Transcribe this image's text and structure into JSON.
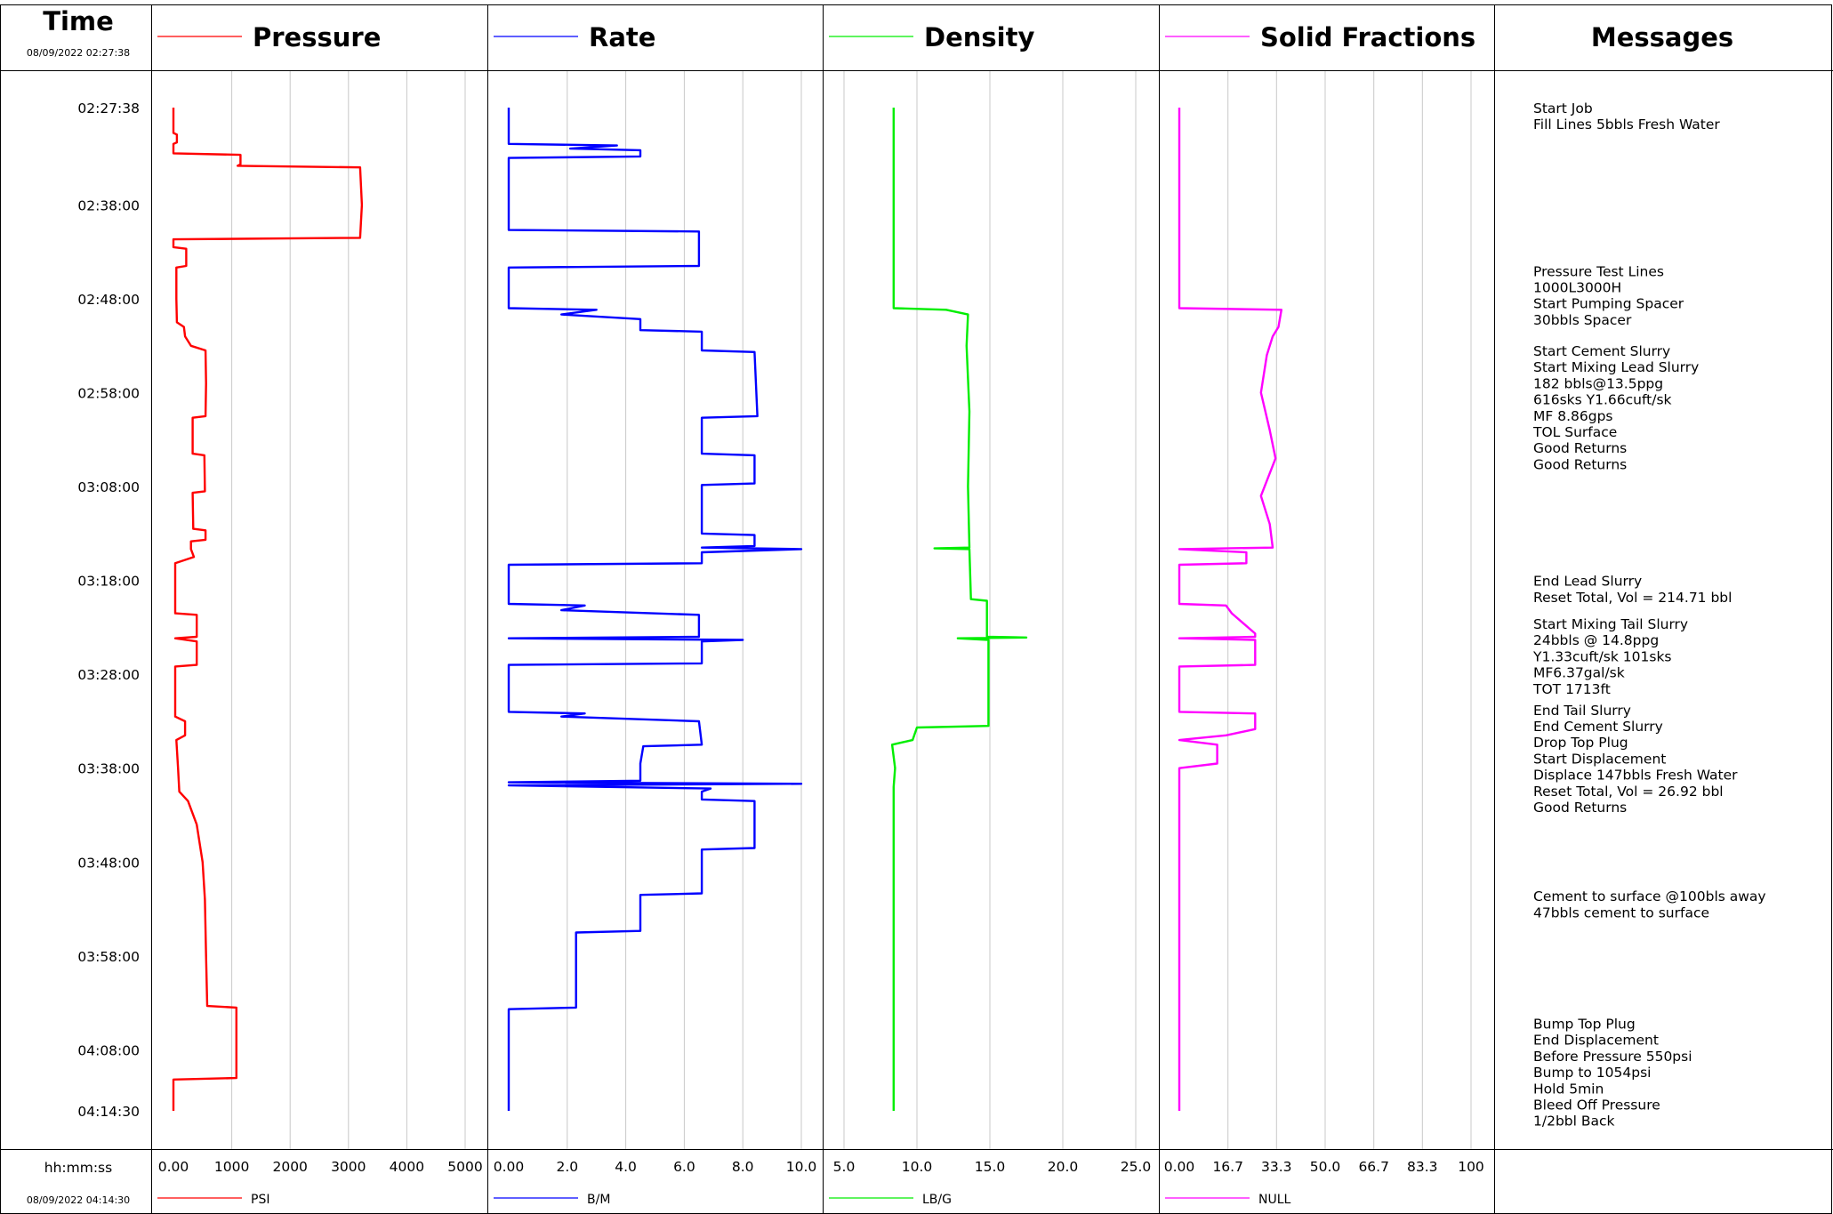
{
  "time_header": {
    "title": "Time",
    "start_stamp": "08/09/2022 02:27:38",
    "unit_label": "hh:mm:ss",
    "end_stamp": "08/09/2022 04:14:30"
  },
  "messages_header": {
    "title": "Messages"
  },
  "time_axis": {
    "start": "02:27:38",
    "end": "04:14:30",
    "ticks": [
      "02:27:38",
      "02:38:00",
      "02:48:00",
      "02:58:00",
      "03:08:00",
      "03:18:00",
      "03:28:00",
      "03:38:00",
      "03:48:00",
      "03:58:00",
      "04:08:00",
      "04:14:30"
    ]
  },
  "chart_data": [
    {
      "type": "line",
      "title": "Pressure",
      "unit": "PSI",
      "color": "#ff0000",
      "xlim": [
        0,
        5000
      ],
      "x_ticks": [
        "0.00",
        "1000",
        "2000",
        "3000",
        "4000",
        "5000"
      ],
      "points": [
        [
          "02:27:38",
          0
        ],
        [
          "02:30:20",
          0
        ],
        [
          "02:30:30",
          60
        ],
        [
          "02:31:20",
          60
        ],
        [
          "02:31:30",
          0
        ],
        [
          "02:32:30",
          0
        ],
        [
          "02:32:40",
          1150
        ],
        [
          "02:33:40",
          1150
        ],
        [
          "02:33:50",
          1100
        ],
        [
          "02:34:00",
          3200
        ],
        [
          "02:38:00",
          3230
        ],
        [
          "02:41:30",
          3200
        ],
        [
          "02:41:40",
          0
        ],
        [
          "02:42:30",
          0
        ],
        [
          "02:42:40",
          220
        ],
        [
          "02:44:30",
          220
        ],
        [
          "02:44:40",
          50
        ],
        [
          "02:48:00",
          50
        ],
        [
          "02:50:30",
          60
        ],
        [
          "02:51:00",
          180
        ],
        [
          "02:52:00",
          200
        ],
        [
          "02:53:00",
          300
        ],
        [
          "02:53:30",
          550
        ],
        [
          "02:57:00",
          560
        ],
        [
          "03:00:30",
          550
        ],
        [
          "03:00:40",
          330
        ],
        [
          "03:04:30",
          330
        ],
        [
          "03:04:40",
          530
        ],
        [
          "03:08:30",
          540
        ],
        [
          "03:08:40",
          330
        ],
        [
          "03:12:30",
          340
        ],
        [
          "03:12:40",
          550
        ],
        [
          "03:13:40",
          550
        ],
        [
          "03:13:50",
          300
        ],
        [
          "03:14:40",
          300
        ],
        [
          "03:15:30",
          350
        ],
        [
          "03:16:10",
          30
        ],
        [
          "03:21:30",
          30
        ],
        [
          "03:21:40",
          400
        ],
        [
          "03:24:00",
          400
        ],
        [
          "03:24:10",
          30
        ],
        [
          "03:24:30",
          400
        ],
        [
          "03:27:00",
          400
        ],
        [
          "03:27:10",
          30
        ],
        [
          "03:32:30",
          30
        ],
        [
          "03:33:00",
          200
        ],
        [
          "03:34:30",
          200
        ],
        [
          "03:35:00",
          50
        ],
        [
          "03:38:00",
          80
        ],
        [
          "03:40:30",
          100
        ],
        [
          "03:41:30",
          250
        ],
        [
          "03:44:00",
          400
        ],
        [
          "03:48:00",
          500
        ],
        [
          "03:52:00",
          540
        ],
        [
          "03:58:00",
          560
        ],
        [
          "04:03:20",
          580
        ],
        [
          "04:03:30",
          1080
        ],
        [
          "04:11:00",
          1080
        ],
        [
          "04:11:10",
          0
        ],
        [
          "04:14:30",
          0
        ]
      ]
    },
    {
      "type": "line",
      "title": "Rate",
      "unit": "B/M",
      "color": "#0000ff",
      "xlim": [
        0,
        10
      ],
      "x_ticks": [
        "0.00",
        "2.0",
        "4.0",
        "6.0",
        "8.0",
        "10.0"
      ],
      "points": [
        [
          "02:27:38",
          0
        ],
        [
          "02:31:30",
          0
        ],
        [
          "02:31:40",
          3.7
        ],
        [
          "02:32:00",
          2.1
        ],
        [
          "02:32:10",
          4.5
        ],
        [
          "02:32:50",
          4.5
        ],
        [
          "02:33:00",
          0
        ],
        [
          "02:40:40",
          0
        ],
        [
          "02:40:50",
          6.5
        ],
        [
          "02:44:30",
          6.5
        ],
        [
          "02:44:40",
          0
        ],
        [
          "02:49:00",
          0
        ],
        [
          "02:49:10",
          3.0
        ],
        [
          "02:49:40",
          1.8
        ],
        [
          "02:50:10",
          4.5
        ],
        [
          "02:51:20",
          4.5
        ],
        [
          "02:51:30",
          6.6
        ],
        [
          "02:53:30",
          6.6
        ],
        [
          "02:53:40",
          8.4
        ],
        [
          "03:00:30",
          8.5
        ],
        [
          "03:00:40",
          6.6
        ],
        [
          "03:04:30",
          6.6
        ],
        [
          "03:04:40",
          8.4
        ],
        [
          "03:07:40",
          8.4
        ],
        [
          "03:07:50",
          6.6
        ],
        [
          "03:12:00",
          6.6
        ],
        [
          "03:13:00",
          6.6
        ],
        [
          "03:13:10",
          8.4
        ],
        [
          "03:14:20",
          8.4
        ],
        [
          "03:14:30",
          6.6
        ],
        [
          "03:14:40",
          10.0
        ],
        [
          "03:15:00",
          6.6
        ],
        [
          "03:16:10",
          6.6
        ],
        [
          "03:16:20",
          0
        ],
        [
          "03:20:30",
          0
        ],
        [
          "03:20:40",
          2.6
        ],
        [
          "03:21:10",
          1.8
        ],
        [
          "03:21:40",
          6.5
        ],
        [
          "03:24:00",
          6.5
        ],
        [
          "03:24:10",
          0
        ],
        [
          "03:24:20",
          8.0
        ],
        [
          "03:24:30",
          6.6
        ],
        [
          "03:26:50",
          6.6
        ],
        [
          "03:27:00",
          0
        ],
        [
          "03:32:00",
          0
        ],
        [
          "03:32:10",
          2.6
        ],
        [
          "03:32:30",
          1.8
        ],
        [
          "03:33:00",
          6.5
        ],
        [
          "03:35:30",
          6.6
        ],
        [
          "03:35:40",
          4.6
        ],
        [
          "03:37:30",
          4.5
        ],
        [
          "03:37:40",
          4.5
        ],
        [
          "03:39:20",
          4.5
        ],
        [
          "03:39:30",
          0
        ],
        [
          "03:39:40",
          10.0
        ],
        [
          "03:39:50",
          0
        ],
        [
          "03:40:10",
          6.9
        ],
        [
          "03:40:30",
          6.6
        ],
        [
          "03:41:20",
          6.6
        ],
        [
          "03:41:30",
          8.4
        ],
        [
          "03:46:30",
          8.4
        ],
        [
          "03:46:40",
          6.6
        ],
        [
          "03:51:20",
          6.6
        ],
        [
          "03:51:30",
          4.5
        ],
        [
          "03:55:20",
          4.5
        ],
        [
          "03:55:30",
          2.3
        ],
        [
          "04:03:30",
          2.3
        ],
        [
          "04:03:40",
          0
        ],
        [
          "04:14:30",
          0
        ]
      ]
    },
    {
      "type": "line",
      "title": "Density",
      "unit": "LB/G",
      "color": "#00ee00",
      "xlim": [
        5.0,
        25.0
      ],
      "x_ticks": [
        "5.0",
        "10.0",
        "15.0",
        "20.0",
        "25.0"
      ],
      "points": [
        [
          "02:27:38",
          8.4
        ],
        [
          "02:49:00",
          8.4
        ],
        [
          "02:49:10",
          12.0
        ],
        [
          "02:49:40",
          13.5
        ],
        [
          "02:53:00",
          13.4
        ],
        [
          "03:00:00",
          13.6
        ],
        [
          "03:08:00",
          13.5
        ],
        [
          "03:14:30",
          13.6
        ],
        [
          "03:14:35",
          11.2
        ],
        [
          "03:14:40",
          13.6
        ],
        [
          "03:20:00",
          13.7
        ],
        [
          "03:20:10",
          14.8
        ],
        [
          "03:24:00",
          14.8
        ],
        [
          "03:24:05",
          17.5
        ],
        [
          "03:24:10",
          12.8
        ],
        [
          "03:24:20",
          14.9
        ],
        [
          "03:33:30",
          14.9
        ],
        [
          "03:33:40",
          10.0
        ],
        [
          "03:35:00",
          9.7
        ],
        [
          "03:35:30",
          8.3
        ],
        [
          "03:38:00",
          8.5
        ],
        [
          "03:40:00",
          8.4
        ],
        [
          "04:14:30",
          8.4
        ]
      ]
    },
    {
      "type": "line",
      "title": "Solid Fractions",
      "unit": "NULL",
      "color": "#ff00ff",
      "xlim": [
        0,
        100
      ],
      "x_ticks": [
        "0.00",
        "16.7",
        "33.3",
        "50.0",
        "66.7",
        "83.3",
        "100"
      ],
      "points": [
        [
          "02:27:38",
          0
        ],
        [
          "02:49:00",
          0
        ],
        [
          "02:49:10",
          35
        ],
        [
          "02:51:00",
          34
        ],
        [
          "02:52:00",
          32
        ],
        [
          "02:54:00",
          30
        ],
        [
          "02:58:00",
          28
        ],
        [
          "03:02:00",
          31
        ],
        [
          "03:05:00",
          33
        ],
        [
          "03:09:00",
          28
        ],
        [
          "03:12:00",
          31
        ],
        [
          "03:14:30",
          32
        ],
        [
          "03:14:40",
          0
        ],
        [
          "03:15:00",
          23
        ],
        [
          "03:16:10",
          23
        ],
        [
          "03:16:20",
          0
        ],
        [
          "03:20:30",
          0
        ],
        [
          "03:20:40",
          16
        ],
        [
          "03:21:30",
          18
        ],
        [
          "03:23:40",
          26
        ],
        [
          "03:24:00",
          26
        ],
        [
          "03:24:10",
          0
        ],
        [
          "03:24:20",
          26
        ],
        [
          "03:27:00",
          26
        ],
        [
          "03:27:10",
          0
        ],
        [
          "03:32:00",
          0
        ],
        [
          "03:32:10",
          26
        ],
        [
          "03:33:50",
          26
        ],
        [
          "03:34:30",
          16
        ],
        [
          "03:35:00",
          0
        ],
        [
          "03:35:30",
          13
        ],
        [
          "03:37:30",
          13
        ],
        [
          "03:38:00",
          0
        ],
        [
          "04:14:30",
          0
        ]
      ]
    }
  ],
  "messages": [
    {
      "time": "02:27:38",
      "lines": [
        "Start Job",
        "Fill Lines 5bbls Fresh Water"
      ]
    },
    {
      "time": "02:45:00",
      "lines": [
        "Pressure Test Lines",
        "1000L3000H",
        "Start Pumping Spacer",
        "30bbls Spacer"
      ]
    },
    {
      "time": "02:53:30",
      "lines": [
        "Start Cement Slurry",
        "Start Mixing Lead Slurry",
        "182 bbls@13.5ppg",
        "616sks Y1.66cuft/sk",
        "MF 8.86gps",
        "TOL Surface",
        "Good Returns",
        "Good Returns"
      ]
    },
    {
      "time": "03:18:00",
      "lines": [
        "End Lead Slurry",
        "Reset Total, Vol = 214.71  bbl"
      ]
    },
    {
      "time": "03:22:35",
      "lines": [
        "Start Mixing Tail Slurry",
        "24bbls @ 14.8ppg",
        "Y1.33cuft/sk 101sks",
        "MF6.37gal/sk",
        "TOT 1713ft"
      ]
    },
    {
      "time": "03:31:45",
      "lines": [
        "End Tail Slurry",
        "End Cement Slurry",
        "Drop Top Plug",
        "Start Displacement",
        "Displace 147bbls Fresh Water",
        "Reset Total, Vol = 26.92  bbl",
        "Good Returns"
      ]
    },
    {
      "time": "03:51:35",
      "lines": [
        "Cement to surface @100bls away",
        "47bbls cement to surface"
      ]
    },
    {
      "time": "04:05:10",
      "lines": [
        "Bump Top Plug",
        "End Displacement",
        "Before Pressure 550psi",
        "Bump to 1054psi",
        "Hold 5min",
        "Bleed Off Pressure",
        "1/2bbl Back"
      ]
    }
  ]
}
